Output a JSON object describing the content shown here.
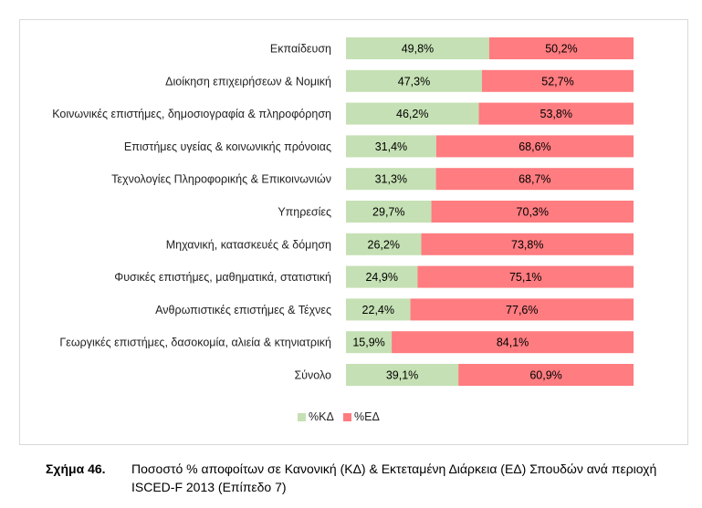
{
  "chart_data": {
    "type": "bar",
    "stacked": true,
    "orientation": "horizontal",
    "categories": [
      "Εκπαίδευση",
      "Διοίκηση επιχειρήσεων & Νομική",
      "Κοινωνικές επιστήμες, δημοσιογραφία & πληροφόρηση",
      "Επιστήμες υγείας & κοινωνικής πρόνοιας",
      "Τεχνολογίες Πληροφορικής & Επικοινωνιών",
      "Υπηρεσίες",
      "Μηχανική, κατασκευές & δόμηση",
      "Φυσικές επιστήμες, μαθηματικά, στατιστική",
      "Ανθρωπιστικές επιστήμες & Τέχνες",
      "Γεωργικές επιστήμες, δασοκομία, αλιεία & κτηνιατρική",
      "Σύνολο"
    ],
    "series": [
      {
        "name": "%ΚΔ",
        "color": "#c5e0b4",
        "values": [
          49.8,
          47.3,
          46.2,
          31.4,
          31.3,
          29.7,
          26.2,
          24.9,
          22.4,
          15.9,
          39.1
        ],
        "labels": [
          "49,8%",
          "47,3%",
          "46,2%",
          "31,4%",
          "31,3%",
          "29,7%",
          "26,2%",
          "24,9%",
          "22,4%",
          "15,9%",
          "39,1%"
        ]
      },
      {
        "name": "%ΕΔ",
        "color": "#ff7c80",
        "values": [
          50.2,
          52.7,
          53.8,
          68.6,
          68.7,
          70.3,
          73.8,
          75.1,
          77.6,
          84.1,
          60.9
        ],
        "labels": [
          "50,2%",
          "52,7%",
          "53,8%",
          "68,6%",
          "68,7%",
          "70,3%",
          "73,8%",
          "75,1%",
          "77,6%",
          "84,1%",
          "60,9%"
        ]
      }
    ],
    "xlim": [
      0,
      100
    ],
    "legend_position": "bottom-center",
    "grid": false
  },
  "caption": {
    "number": "Σχήμα 46.",
    "text": "Ποσοστό % αποφοίτων σε Κανονική (ΚΔ) & Εκτεταμένη Διάρκεια (ΕΔ) Σπουδών ανά περιοχή ISCED-F 2013 (Επίπεδο 7)"
  }
}
